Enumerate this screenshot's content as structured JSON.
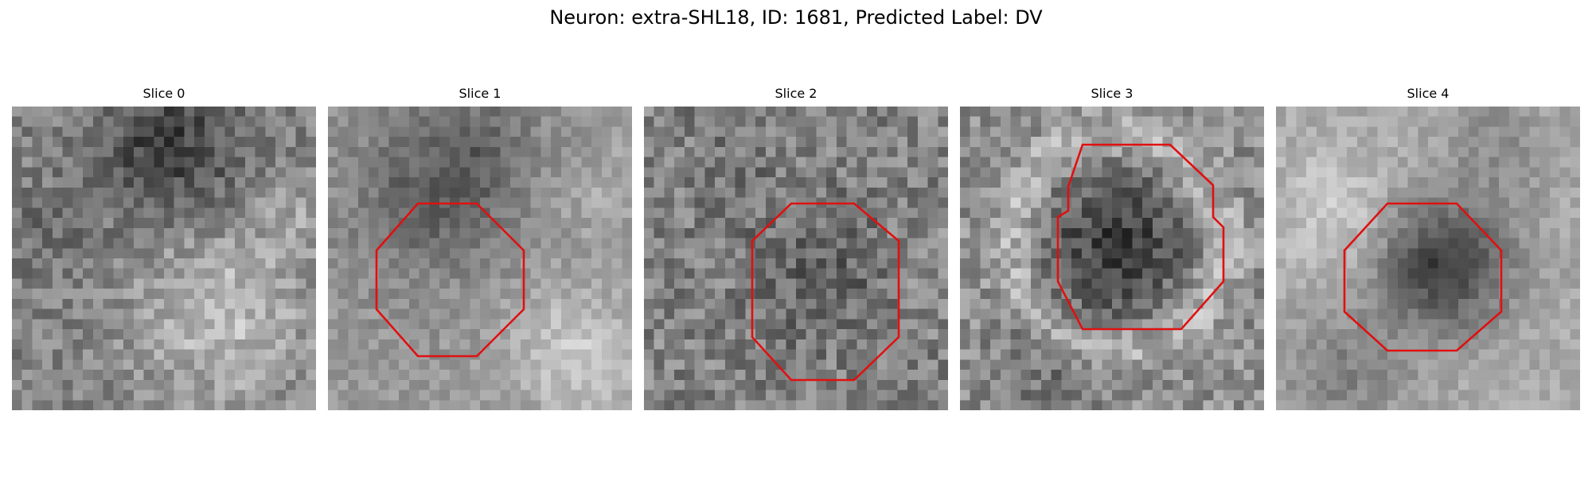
{
  "figure": {
    "title": "Neuron: extra-SHL18, ID: 1681, Predicted Label: DV",
    "outline_color": "#e01010"
  },
  "panels": [
    {
      "title": "Slice 0",
      "outline": false
    },
    {
      "title": "Slice 1",
      "outline": true
    },
    {
      "title": "Slice 2",
      "outline": true
    },
    {
      "title": "Slice 3",
      "outline": true
    },
    {
      "title": "Slice 4",
      "outline": true
    }
  ]
}
